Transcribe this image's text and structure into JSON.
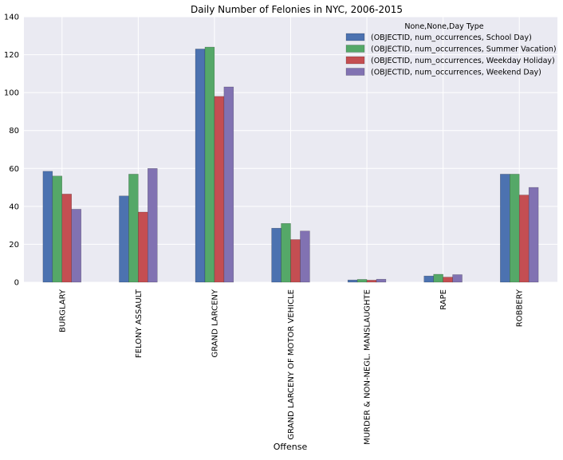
{
  "chart_data": {
    "type": "bar",
    "title": "Daily Number of Felonies in NYC, 2006-2015",
    "xlabel": "Offense",
    "ylabel": "",
    "ylim": [
      0,
      140
    ],
    "yticks": [
      0,
      20,
      40,
      60,
      80,
      100,
      120,
      140
    ],
    "grid": true,
    "legend_position": "top-right",
    "legend_title": "None,None,Day Type",
    "categories": [
      "BURGLARY",
      "FELONY ASSAULT",
      "GRAND LARCENY",
      "GRAND LARCENY OF MOTOR VEHICLE",
      "MURDER & NON-NEGL. MANSLAUGHTE",
      "RAPE",
      "ROBBERY"
    ],
    "series": [
      {
        "name": "(OBJECTID, num_occurrences, School Day)",
        "color": "#4c72b0",
        "values": [
          58.5,
          45.5,
          123,
          28.5,
          1.2,
          3.3,
          57
        ]
      },
      {
        "name": "(OBJECTID, num_occurrences, Summer Vacation)",
        "color": "#55a868",
        "values": [
          56,
          57,
          124,
          31,
          1.5,
          4.2,
          57
        ]
      },
      {
        "name": "(OBJECTID, num_occurrences, Weekday Holiday)",
        "color": "#c44e52",
        "values": [
          46.5,
          37,
          98,
          22.5,
          1.1,
          2.7,
          46
        ]
      },
      {
        "name": "(OBJECTID, num_occurrences, Weekend Day)",
        "color": "#8172b2",
        "values": [
          38.5,
          60,
          103,
          27,
          1.6,
          4.0,
          50
        ]
      }
    ],
    "colors": {
      "plot_background": "#eaeaf2",
      "grid": "#ffffff"
    }
  }
}
